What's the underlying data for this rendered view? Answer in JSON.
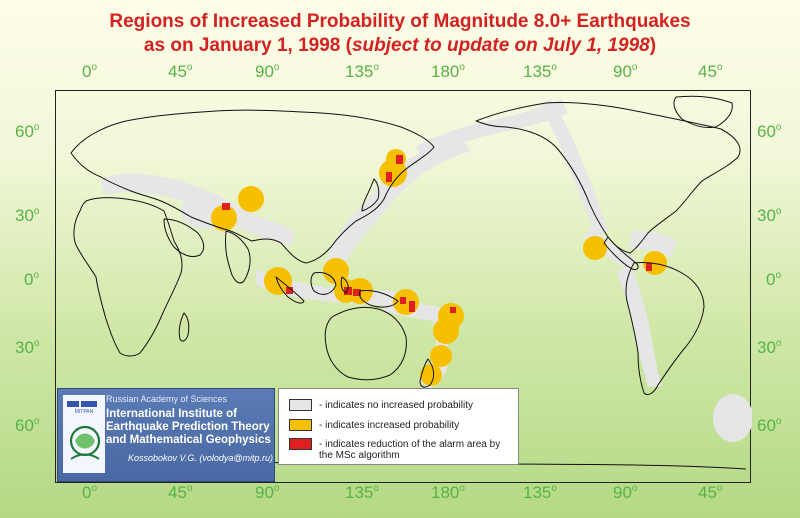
{
  "title": {
    "line1": "Regions of Increased Probability of Magnitude 8.0+ Earthquakes",
    "line2_prefix": "as on January 1, 1998 (",
    "line2_italic": "subject to update on July 1, 1998",
    "line2_suffix": ")"
  },
  "longitude_labels_top": [
    "0",
    "45",
    "90",
    "135",
    "180",
    "135",
    "90",
    "45"
  ],
  "longitude_labels_bottom": [
    "0",
    "45",
    "90",
    "135",
    "180",
    "135",
    "90",
    "45"
  ],
  "latitude_labels_left": [
    "60",
    "30",
    "0",
    "30",
    "60"
  ],
  "latitude_labels_right": [
    "60",
    "30",
    "0",
    "30",
    "60"
  ],
  "degree_symbol": "o",
  "legend": {
    "items": [
      {
        "color": "#e6e6e6",
        "label": "- indicates no increased probability"
      },
      {
        "color": "#f6c000",
        "label": "- indicates increased probability"
      },
      {
        "color": "#e02020",
        "label": "- indicates reduction of the alarm area by the MSc algorithm"
      }
    ]
  },
  "institute": {
    "academy": "Russian Academy of Sciences",
    "name": "International Institute of Earthquake Prediction Theory and Mathematical Geophysics",
    "author": "Kossobokov V.G. (volodya@mitp.ru)"
  },
  "colors": {
    "title": "#d42222",
    "axis_labels": "#58b247",
    "no_increase": "#e6e6e6",
    "increased": "#f6c000",
    "reduced": "#e02020",
    "coastline": "#111111"
  }
}
